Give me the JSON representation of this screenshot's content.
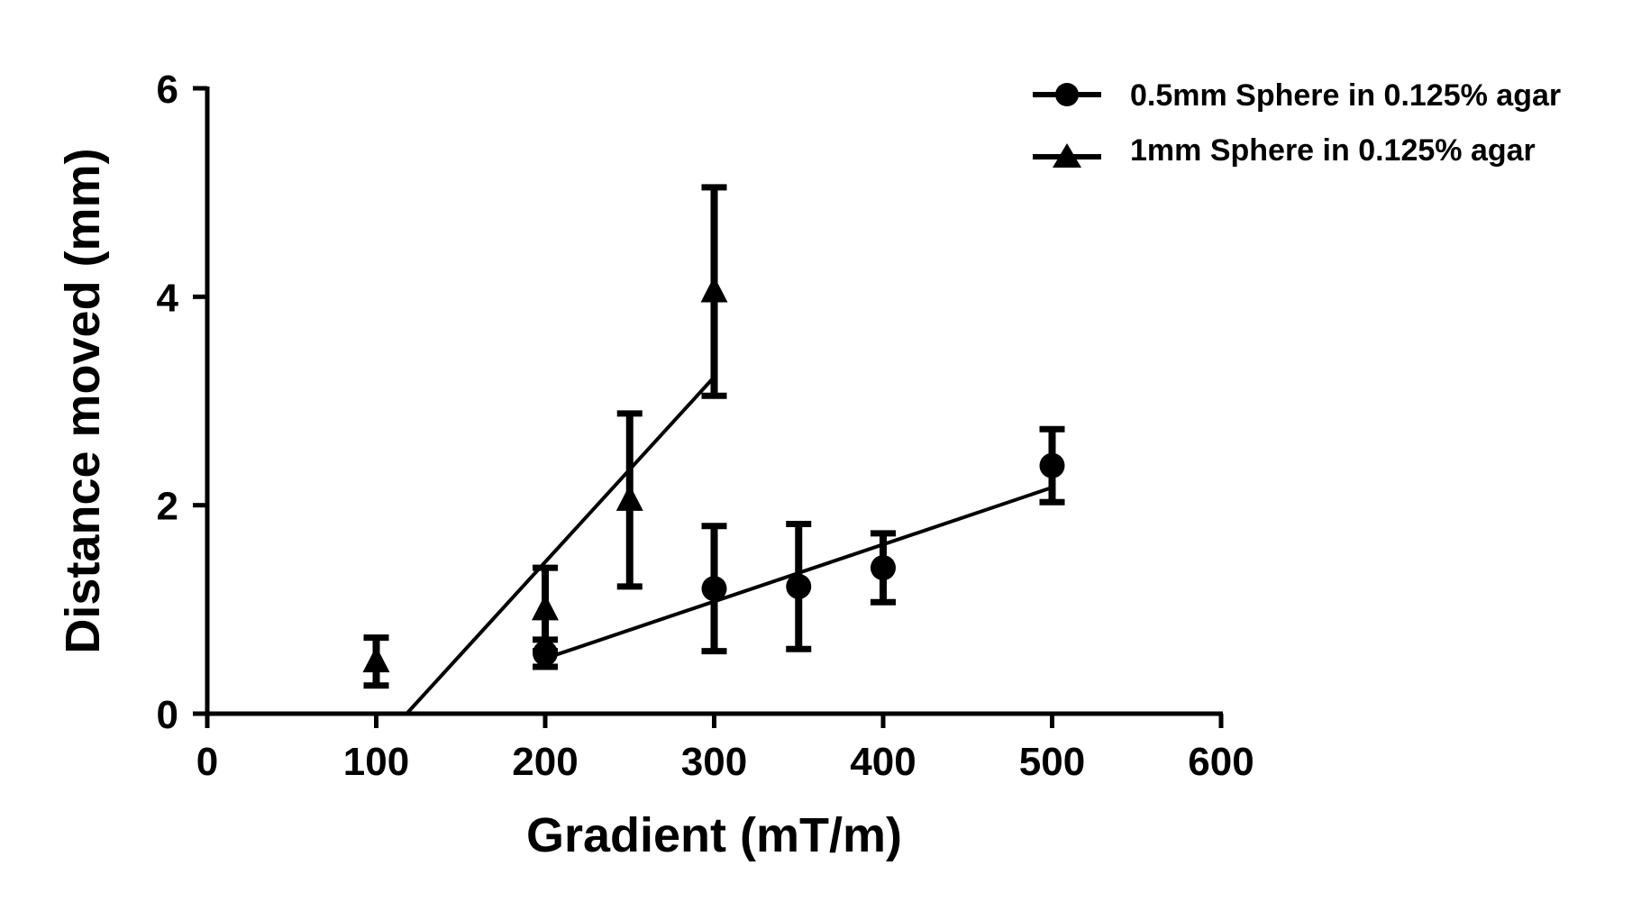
{
  "chart_data": {
    "type": "scatter",
    "xlabel": "Gradient (mT/m)",
    "ylabel": "Distance moved (mm)",
    "xlim": [
      0,
      600
    ],
    "ylim": [
      0,
      6
    ],
    "x_ticks": [
      0,
      100,
      200,
      300,
      400,
      500,
      600
    ],
    "y_ticks": [
      0,
      2,
      4,
      6
    ],
    "x_tick_labels": [
      "0",
      "100",
      "200",
      "300",
      "400",
      "500",
      "600"
    ],
    "y_tick_labels": [
      "0",
      "2",
      "4",
      "6"
    ],
    "grid": false,
    "legend_position": "top-right",
    "series": [
      {
        "name": "0.5mm Sphere in 0.125% agar",
        "marker": "circle",
        "points": [
          {
            "x": 200,
            "y": 0.58,
            "err": 0.13
          },
          {
            "x": 300,
            "y": 1.2,
            "err": 0.6
          },
          {
            "x": 350,
            "y": 1.22,
            "err": 0.6
          },
          {
            "x": 400,
            "y": 1.4,
            "err": 0.33
          },
          {
            "x": 500,
            "y": 2.38,
            "err": 0.35
          }
        ],
        "fit": {
          "x": [
            200,
            500
          ],
          "y": [
            0.53,
            2.17
          ]
        }
      },
      {
        "name": "1mm Sphere in 0.125% agar",
        "marker": "triangle",
        "points": [
          {
            "x": 100,
            "y": 0.5,
            "err": 0.23
          },
          {
            "x": 200,
            "y": 1.0,
            "err": 0.4
          },
          {
            "x": 250,
            "y": 2.05,
            "err": 0.83
          },
          {
            "x": 300,
            "y": 4.05,
            "err": 1.0
          }
        ],
        "fit": {
          "x": [
            118,
            300
          ],
          "y": [
            0,
            3.23
          ]
        }
      }
    ]
  }
}
